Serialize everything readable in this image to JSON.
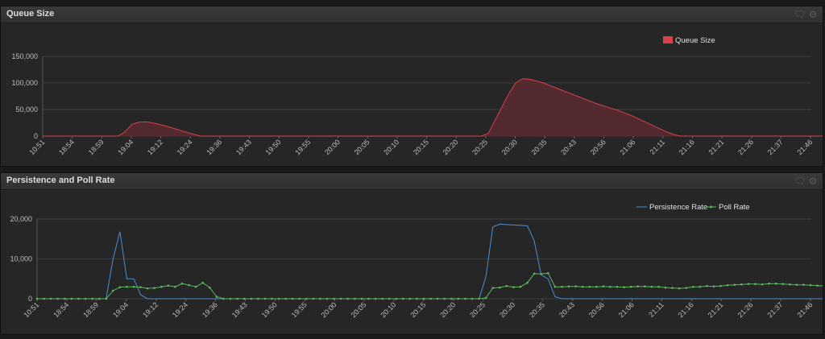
{
  "panels": [
    {
      "title": "Queue Size",
      "icons": [
        "comment-icon",
        "gear-icon"
      ],
      "chart_data": {
        "type": "area",
        "title": "Queue Size",
        "xlabel": "",
        "ylabel": "",
        "ylim": [
          0,
          150000
        ],
        "y_ticks": [
          0,
          50000,
          100000,
          150000
        ],
        "y_tick_labels": [
          "0",
          "50,000",
          "100,000",
          "150,000"
        ],
        "x_tick_labels": [
          "10:51",
          "18:54",
          "18:59",
          "19:04",
          "19:12",
          "19:24",
          "19:36",
          "19:43",
          "19:50",
          "19:55",
          "20:00",
          "20:05",
          "20:10",
          "20:15",
          "20:20",
          "20:25",
          "20:30",
          "20:35",
          "20:43",
          "20:56",
          "21:06",
          "21:11",
          "21:16",
          "21:21",
          "21:26",
          "21:37",
          "21:46"
        ],
        "x_count": 113,
        "legend_position": "top-right",
        "grid": true,
        "series": [
          {
            "name": "Queue Size",
            "color": "#d9404b",
            "values": [
              0,
              0,
              0,
              0,
              0,
              0,
              0,
              0,
              0,
              0,
              0,
              0,
              8000,
              22000,
              26000,
              27000,
              25000,
              22000,
              19000,
              15000,
              11000,
              7000,
              3500,
              0,
              0,
              0,
              0,
              0,
              0,
              0,
              0,
              0,
              0,
              0,
              0,
              0,
              0,
              0,
              0,
              0,
              0,
              0,
              0,
              0,
              0,
              0,
              0,
              0,
              0,
              0,
              0,
              0,
              0,
              0,
              0,
              0,
              0,
              0,
              0,
              0,
              0,
              0,
              0,
              0,
              0,
              5000,
              30000,
              55000,
              80000,
              100000,
              108000,
              107000,
              104000,
              100000,
              95000,
              90000,
              85000,
              80000,
              75000,
              70000,
              65000,
              60000,
              56000,
              52000,
              48000,
              43000,
              38000,
              32000,
              26000,
              20000,
              14000,
              8000,
              3000,
              0,
              0,
              0,
              0,
              0,
              0,
              0,
              0,
              0,
              0,
              0,
              0,
              0,
              0,
              0,
              0,
              0,
              0,
              0,
              0,
              0,
              0,
              0,
              0,
              0,
              0
            ]
          }
        ]
      }
    },
    {
      "title": "Persistence and Poll Rate",
      "icons": [
        "comment-icon",
        "gear-icon"
      ],
      "chart_data": {
        "type": "line",
        "title": "Persistence and Poll Rate",
        "xlabel": "",
        "ylabel": "",
        "ylim": [
          0,
          20000
        ],
        "y_ticks": [
          0,
          10000,
          20000
        ],
        "y_tick_labels": [
          "0",
          "10,000",
          "20,000"
        ],
        "x_tick_labels": [
          "10:51",
          "18:54",
          "18:59",
          "19:04",
          "19:12",
          "19:24",
          "19:36",
          "19:43",
          "19:50",
          "19:55",
          "20:00",
          "20:05",
          "20:10",
          "20:15",
          "20:20",
          "20:25",
          "20:30",
          "20:35",
          "20:43",
          "20:56",
          "21:06",
          "21:11",
          "21:16",
          "21:21",
          "21:26",
          "21:37",
          "21:46"
        ],
        "x_count": 113,
        "legend_position": "top-right",
        "grid": true,
        "series": [
          {
            "name": "Persistence Rate",
            "color": "#4a8fd6",
            "marker": false,
            "values": [
              0,
              0,
              0,
              0,
              0,
              0,
              0,
              0,
              0,
              0,
              0,
              10000,
              16800,
              5000,
              5000,
              1000,
              0,
              0,
              0,
              0,
              0,
              0,
              0,
              0,
              0,
              0,
              0,
              0,
              0,
              0,
              0,
              0,
              0,
              0,
              0,
              0,
              0,
              0,
              0,
              0,
              0,
              0,
              0,
              0,
              0,
              0,
              0,
              0,
              0,
              0,
              0,
              0,
              0,
              0,
              0,
              0,
              0,
              0,
              0,
              0,
              0,
              0,
              0,
              0,
              0,
              5500,
              18000,
              18700,
              18600,
              18500,
              18400,
              18300,
              14500,
              6000,
              5000,
              500,
              0,
              0,
              0,
              0,
              0,
              0,
              0,
              0,
              0,
              0,
              0,
              0,
              0,
              0,
              0,
              0,
              0,
              0,
              0,
              0,
              0,
              0,
              0,
              0,
              0,
              0,
              0,
              0,
              0,
              0,
              0,
              0,
              0,
              0,
              0,
              0,
              0,
              0,
              0,
              0,
              0
            ]
          },
          {
            "name": "Poll Rate",
            "color": "#5cb85c",
            "marker": true,
            "values": [
              0,
              0,
              0,
              0,
              0,
              0,
              0,
              0,
              0,
              0,
              0,
              2000,
              2900,
              3000,
              3000,
              2900,
              2600,
              2700,
              3000,
              3300,
              3000,
              3800,
              3400,
              3000,
              4000,
              2800,
              500,
              0,
              0,
              0,
              0,
              0,
              0,
              0,
              0,
              0,
              0,
              0,
              0,
              0,
              0,
              0,
              0,
              0,
              0,
              0,
              0,
              0,
              0,
              0,
              0,
              0,
              0,
              0,
              0,
              0,
              0,
              0,
              0,
              0,
              0,
              0,
              0,
              0,
              0,
              200,
              2700,
              2800,
              3200,
              2900,
              3000,
              4000,
              6300,
              6200,
              6400,
              3000,
              3000,
              3100,
              3100,
              3000,
              3000,
              3000,
              3100,
              3000,
              3000,
              2900,
              3000,
              3100,
              3100,
              3000,
              3000,
              2800,
              2700,
              2600,
              2700,
              3000,
              3000,
              3200,
              3100,
              3200,
              3400,
              3500,
              3600,
              3700,
              3700,
              3600,
              3800,
              3800,
              3700,
              3600,
              3500,
              3500,
              3400,
              3300,
              3200,
              3100
            ]
          }
        ]
      }
    }
  ]
}
